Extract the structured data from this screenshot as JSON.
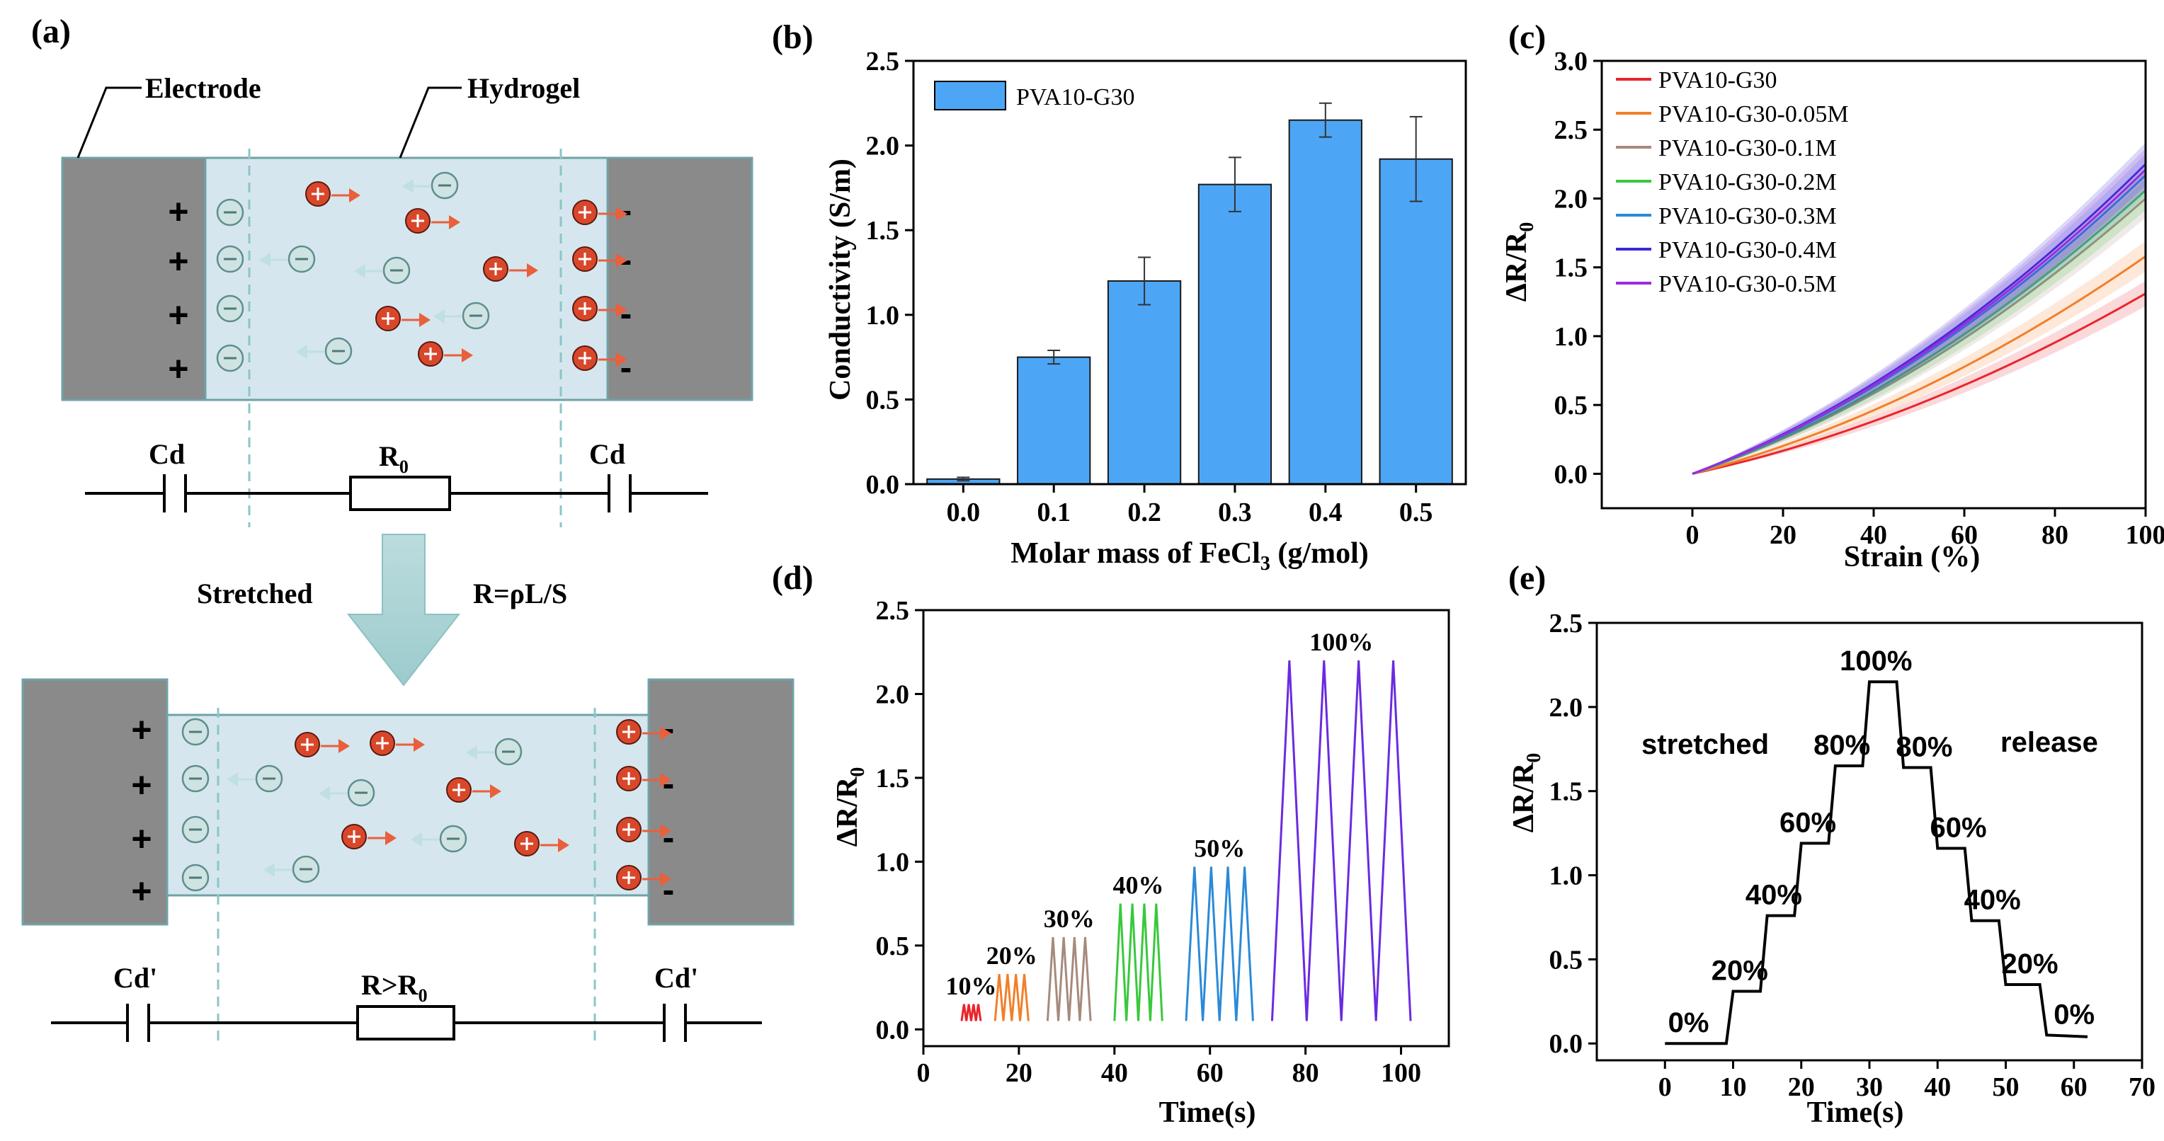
{
  "panel_labels": [
    "(a)",
    "(b)",
    "(c)",
    "(d)",
    "(e)"
  ],
  "colors": {
    "hydrogel_fill": "#d6e6ee",
    "hydrogel_edge": "#6fa3a8",
    "electrode": "#8a8a8a",
    "cation": "#d9472b",
    "anion": "#cfe3e3",
    "arrow_cation": "#e8603c",
    "arrow_anion": "#bfe0e0",
    "bar": "#4da6f5",
    "big_arrow": "#a9d1d3"
  },
  "schematic": {
    "electrode_label": "Electrode",
    "hydrogel_label": "Hydrogel",
    "plus": "+",
    "minus": "-",
    "cd_label": "Cd",
    "r0_label": "R",
    "r0_sub": "0",
    "stretched_label": "Stretched",
    "formula": "R=ρL/S",
    "cd2_label": "Cd'",
    "rgt_label": "R>R",
    "rgt_sub": "0"
  },
  "chart_data": [
    {
      "id": "b",
      "type": "bar",
      "title": "",
      "xlabel": "Molar mass of FeCl",
      "xlabel_sub": "3",
      "xlabel_tail": " (g/mol)",
      "ylabel": "Conductivity (S/m)",
      "categories": [
        "0.0",
        "0.1",
        "0.2",
        "0.3",
        "0.4",
        "0.5"
      ],
      "values": [
        0.03,
        0.75,
        1.2,
        1.77,
        2.15,
        1.92
      ],
      "errors": [
        0.01,
        0.04,
        0.14,
        0.16,
        0.1,
        0.25
      ],
      "ylim": [
        0,
        2.5
      ],
      "yticks": [
        "0.0",
        "0.5",
        "1.0",
        "1.5",
        "2.0",
        "2.5"
      ],
      "legend": [
        "PVA10-G30"
      ],
      "legend_position": "top-left"
    },
    {
      "id": "c",
      "type": "line",
      "xlabel": "Strain (%)",
      "ylabel": "ΔR/R",
      "ylabel_sub": "0",
      "x": [
        0,
        20,
        40,
        60,
        80,
        100
      ],
      "xlim": [
        -20,
        100
      ],
      "ylim": [
        -0.25,
        3.0
      ],
      "xticks": [
        "0",
        "20",
        "40",
        "60",
        "80",
        "100"
      ],
      "yticks": [
        "0.0",
        "0.5",
        "1.0",
        "1.5",
        "2.0",
        "2.5",
        "3.0"
      ],
      "legend_position": "top-left",
      "series": [
        {
          "name": "PVA10-G30",
          "color": "#e8262b",
          "final": 1.31
        },
        {
          "name": "PVA10-G30-0.05M",
          "color": "#f27f2a",
          "final": 1.58
        },
        {
          "name": "PVA10-G30-0.1M",
          "color": "#a68a7c",
          "final": 2.0
        },
        {
          "name": "PVA10-G30-0.2M",
          "color": "#38c83c",
          "final": 2.06
        },
        {
          "name": "PVA10-G30-0.3M",
          "color": "#2a8ad8",
          "final": 2.17
        },
        {
          "name": "PVA10-G30-0.4M",
          "color": "#3a2bd6",
          "final": 2.25
        },
        {
          "name": "PVA10-G30-0.5M",
          "color": "#9b2be0",
          "final": 2.21
        }
      ]
    },
    {
      "id": "d",
      "type": "line",
      "xlabel": "Time(s)",
      "ylabel": "ΔR/R",
      "ylabel_sub": "0",
      "xlim": [
        0,
        110
      ],
      "ylim": [
        -0.1,
        2.5
      ],
      "xticks": [
        "0",
        "20",
        "40",
        "60",
        "80",
        "100"
      ],
      "yticks": [
        "0.0",
        "0.5",
        "1.0",
        "1.5",
        "2.0",
        "2.5"
      ],
      "groups": [
        {
          "label": "10%",
          "color": "#e8262b",
          "start": 8,
          "end": 12,
          "peak": 0.15,
          "cycles": 4
        },
        {
          "label": "20%",
          "color": "#f27f2a",
          "start": 15,
          "end": 22,
          "peak": 0.33,
          "cycles": 4
        },
        {
          "label": "30%",
          "color": "#a68a7c",
          "start": 26,
          "end": 35,
          "peak": 0.55,
          "cycles": 4
        },
        {
          "label": "40%",
          "color": "#38c83c",
          "start": 40,
          "end": 50,
          "peak": 0.75,
          "cycles": 4
        },
        {
          "label": "50%",
          "color": "#2a8ad8",
          "start": 55,
          "end": 69,
          "peak": 0.97,
          "cycles": 4
        },
        {
          "label": "100%",
          "color": "#6a2be0",
          "start": 73,
          "end": 102,
          "peak": 2.2,
          "cycles": 4
        }
      ]
    },
    {
      "id": "e",
      "type": "line",
      "xlabel": "Time(s)",
      "ylabel": "ΔR/R",
      "ylabel_sub": "0",
      "xlim": [
        -10,
        70
      ],
      "ylim": [
        -0.1,
        2.5
      ],
      "xticks": [
        "0",
        "10",
        "20",
        "30",
        "40",
        "50",
        "60",
        "70"
      ],
      "yticks": [
        "0.0",
        "0.5",
        "1.0",
        "1.5",
        "2.0",
        "2.5"
      ],
      "x": [
        0,
        9,
        10,
        14,
        15,
        19,
        20,
        24,
        25,
        29,
        30,
        34,
        35,
        39,
        40,
        44,
        45,
        49,
        50,
        55,
        56,
        62
      ],
      "y": [
        0.0,
        0.0,
        0.31,
        0.31,
        0.76,
        0.76,
        1.19,
        1.19,
        1.65,
        1.65,
        2.15,
        2.15,
        1.64,
        1.64,
        1.16,
        1.16,
        0.73,
        0.73,
        0.35,
        0.35,
        0.05,
        0.04
      ],
      "step_labels": [
        "0%",
        "20%",
        "40%",
        "60%",
        "80%",
        "100%",
        "80%",
        "60%",
        "40%",
        "20%",
        "0%"
      ],
      "stretched_label": "stretched",
      "release_label": "release"
    }
  ]
}
